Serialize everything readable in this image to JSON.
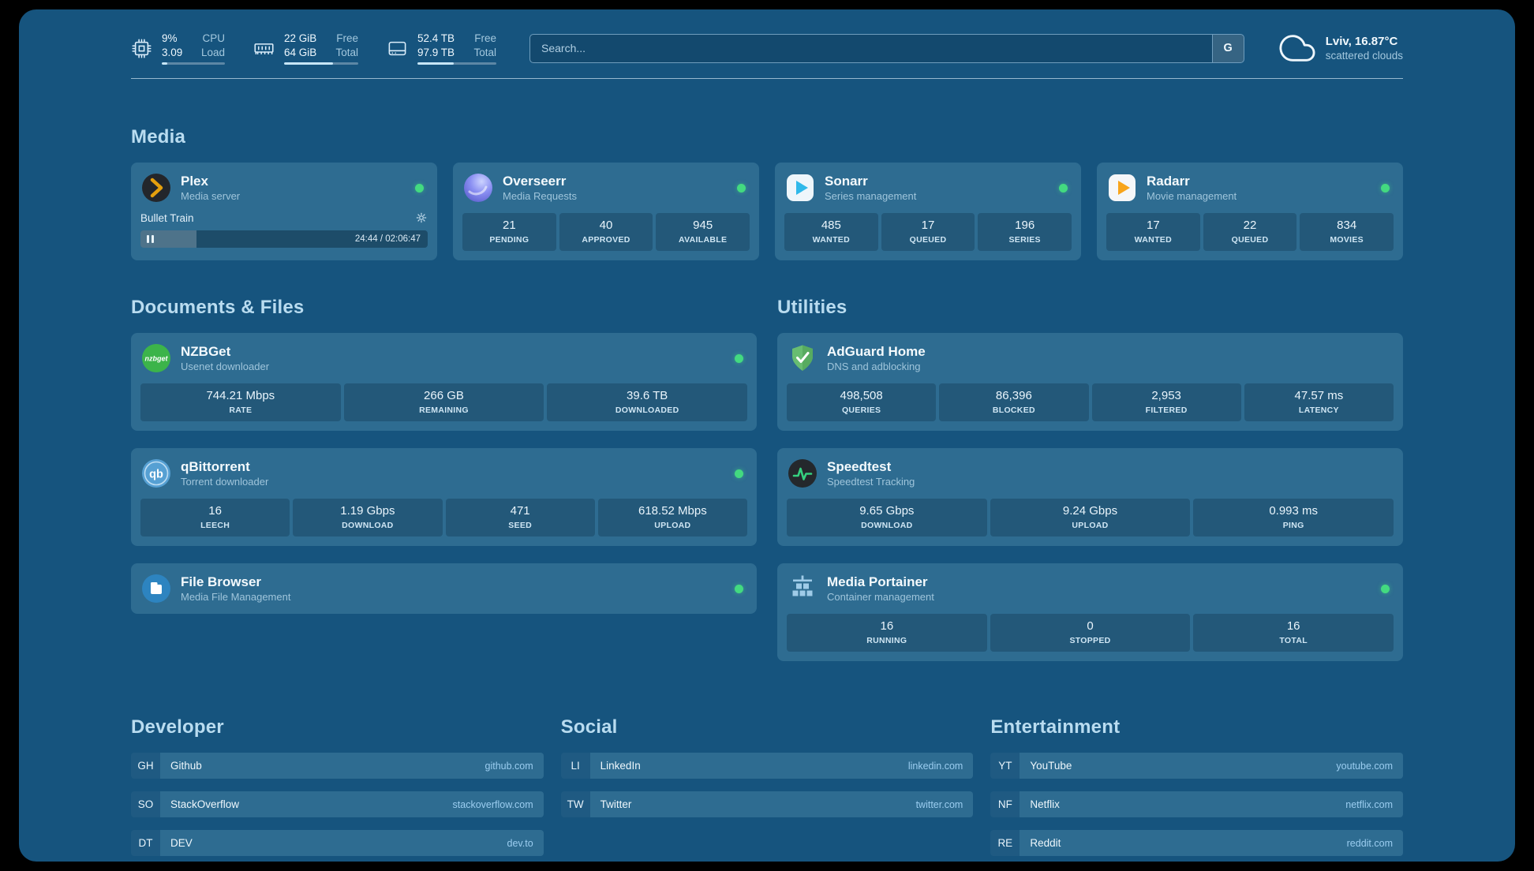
{
  "colors": {
    "status_online": "#43da80",
    "plex_accent": "#e5a00d",
    "adguard_green": "#68bd71",
    "speedtest_green": "#35d07f",
    "nzbget_green": "#3cb44a"
  },
  "header": {
    "resources": [
      {
        "icon": "cpu-icon",
        "rows": [
          {
            "value": "9%",
            "label": "CPU"
          },
          {
            "value": "3.09",
            "label": "Load"
          }
        ],
        "progress": 9
      },
      {
        "icon": "memory-icon",
        "rows": [
          {
            "value": "22 GiB",
            "label": "Free"
          },
          {
            "value": "64 GiB",
            "label": "Total"
          }
        ],
        "progress": 66
      },
      {
        "icon": "disk-icon",
        "rows": [
          {
            "value": "52.4 TB",
            "label": "Free"
          },
          {
            "value": "97.9 TB",
            "label": "Total"
          }
        ],
        "progress": 46
      }
    ],
    "search": {
      "placeholder": "Search...",
      "provider_label": "G"
    },
    "weather": {
      "icon": "cloud-icon",
      "location": "Lviv, 16.87°C",
      "condition": "scattered clouds"
    }
  },
  "media": {
    "title": "Media",
    "cards": [
      {
        "icon": "plex-icon",
        "name": "Plex",
        "subtitle": "Media server",
        "online": true,
        "player": {
          "title": "Bullet Train",
          "time": "24:44 / 02:06:47",
          "progress": 19.5
        }
      },
      {
        "icon": "overseerr-icon",
        "name": "Overseerr",
        "subtitle": "Media Requests",
        "online": true,
        "stats": [
          {
            "value": "21",
            "label": "PENDING"
          },
          {
            "value": "40",
            "label": "APPROVED"
          },
          {
            "value": "945",
            "label": "AVAILABLE"
          }
        ]
      },
      {
        "icon": "sonarr-icon",
        "name": "Sonarr",
        "subtitle": "Series management",
        "online": true,
        "stats": [
          {
            "value": "485",
            "label": "WANTED"
          },
          {
            "value": "17",
            "label": "QUEUED"
          },
          {
            "value": "196",
            "label": "SERIES"
          }
        ]
      },
      {
        "icon": "radarr-icon",
        "name": "Radarr",
        "subtitle": "Movie management",
        "online": true,
        "stats": [
          {
            "value": "17",
            "label": "WANTED"
          },
          {
            "value": "22",
            "label": "QUEUED"
          },
          {
            "value": "834",
            "label": "MOVIES"
          }
        ]
      }
    ]
  },
  "documents": {
    "title": "Documents & Files",
    "cards": [
      {
        "icon": "nzbget-icon",
        "icon_text": "nzbget",
        "name": "NZBGet",
        "subtitle": "Usenet downloader",
        "online": true,
        "stats": [
          {
            "value": "744.21 Mbps",
            "label": "RATE"
          },
          {
            "value": "266 GB",
            "label": "REMAINING"
          },
          {
            "value": "39.6 TB",
            "label": "DOWNLOADED"
          }
        ]
      },
      {
        "icon": "qbittorrent-icon",
        "icon_text": "qb",
        "name": "qBittorrent",
        "subtitle": "Torrent downloader",
        "online": true,
        "stats": [
          {
            "value": "16",
            "label": "LEECH"
          },
          {
            "value": "1.19 Gbps",
            "label": "DOWNLOAD"
          },
          {
            "value": "471",
            "label": "SEED"
          },
          {
            "value": "618.52 Mbps",
            "label": "UPLOAD"
          }
        ]
      },
      {
        "icon": "filebrowser-icon",
        "name": "File Browser",
        "subtitle": "Media File Management",
        "online": true,
        "stats": []
      }
    ]
  },
  "utilities": {
    "title": "Utilities",
    "cards": [
      {
        "icon": "adguard-icon",
        "name": "AdGuard Home",
        "subtitle": "DNS and adblocking",
        "online": false,
        "stats": [
          {
            "value": "498,508",
            "label": "QUERIES"
          },
          {
            "value": "86,396",
            "label": "BLOCKED"
          },
          {
            "value": "2,953",
            "label": "FILTERED"
          },
          {
            "value": "47.57 ms",
            "label": "LATENCY"
          }
        ]
      },
      {
        "icon": "speedtest-icon",
        "name": "Speedtest",
        "subtitle": "Speedtest Tracking",
        "online": false,
        "stats": [
          {
            "value": "9.65 Gbps",
            "label": "DOWNLOAD"
          },
          {
            "value": "9.24 Gbps",
            "label": "UPLOAD"
          },
          {
            "value": "0.993 ms",
            "label": "PING"
          }
        ]
      },
      {
        "icon": "portainer-icon",
        "name": "Media Portainer",
        "subtitle": "Container management",
        "online": true,
        "stats": [
          {
            "value": "16",
            "label": "RUNNING"
          },
          {
            "value": "0",
            "label": "STOPPED"
          },
          {
            "value": "16",
            "label": "TOTAL"
          }
        ]
      }
    ]
  },
  "links": {
    "groups": [
      {
        "title": "Developer",
        "items": [
          {
            "abbr": "GH",
            "name": "Github",
            "url": "github.com"
          },
          {
            "abbr": "SO",
            "name": "StackOverflow",
            "url": "stackoverflow.com"
          },
          {
            "abbr": "DT",
            "name": "DEV",
            "url": "dev.to"
          }
        ]
      },
      {
        "title": "Social",
        "items": [
          {
            "abbr": "LI",
            "name": "LinkedIn",
            "url": "linkedin.com"
          },
          {
            "abbr": "TW",
            "name": "Twitter",
            "url": "twitter.com"
          }
        ]
      },
      {
        "title": "Entertainment",
        "items": [
          {
            "abbr": "YT",
            "name": "YouTube",
            "url": "youtube.com"
          },
          {
            "abbr": "NF",
            "name": "Netflix",
            "url": "netflix.com"
          },
          {
            "abbr": "RE",
            "name": "Reddit",
            "url": "reddit.com"
          }
        ]
      }
    ]
  }
}
